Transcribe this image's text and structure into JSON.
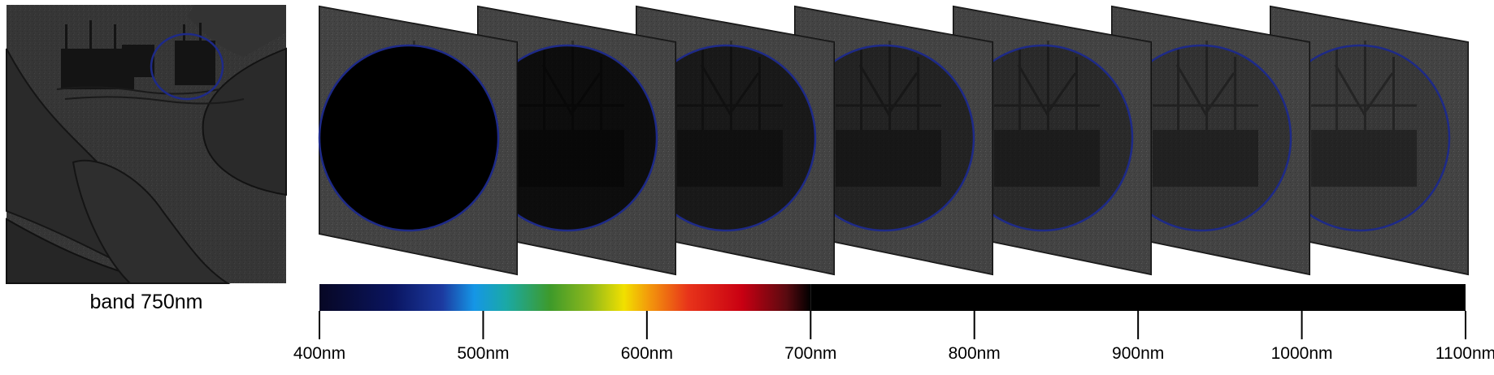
{
  "thumbnail": {
    "caption": "band 750nm"
  },
  "bands": [
    {
      "darkness": 1.0
    },
    {
      "darkness": 0.8
    },
    {
      "darkness": 0.62
    },
    {
      "darkness": 0.48
    },
    {
      "darkness": 0.36
    },
    {
      "darkness": 0.25
    },
    {
      "darkness": 0.16
    }
  ],
  "spectrum_axis": {
    "ticks": [
      "400nm",
      "500nm",
      "600nm",
      "700nm",
      "800nm",
      "900nm",
      "1000nm",
      "1100nm"
    ]
  },
  "colors": {
    "circle_outline": "#1e2a88",
    "panel_gray": "#4a4a4a",
    "background": "#ffffff"
  }
}
